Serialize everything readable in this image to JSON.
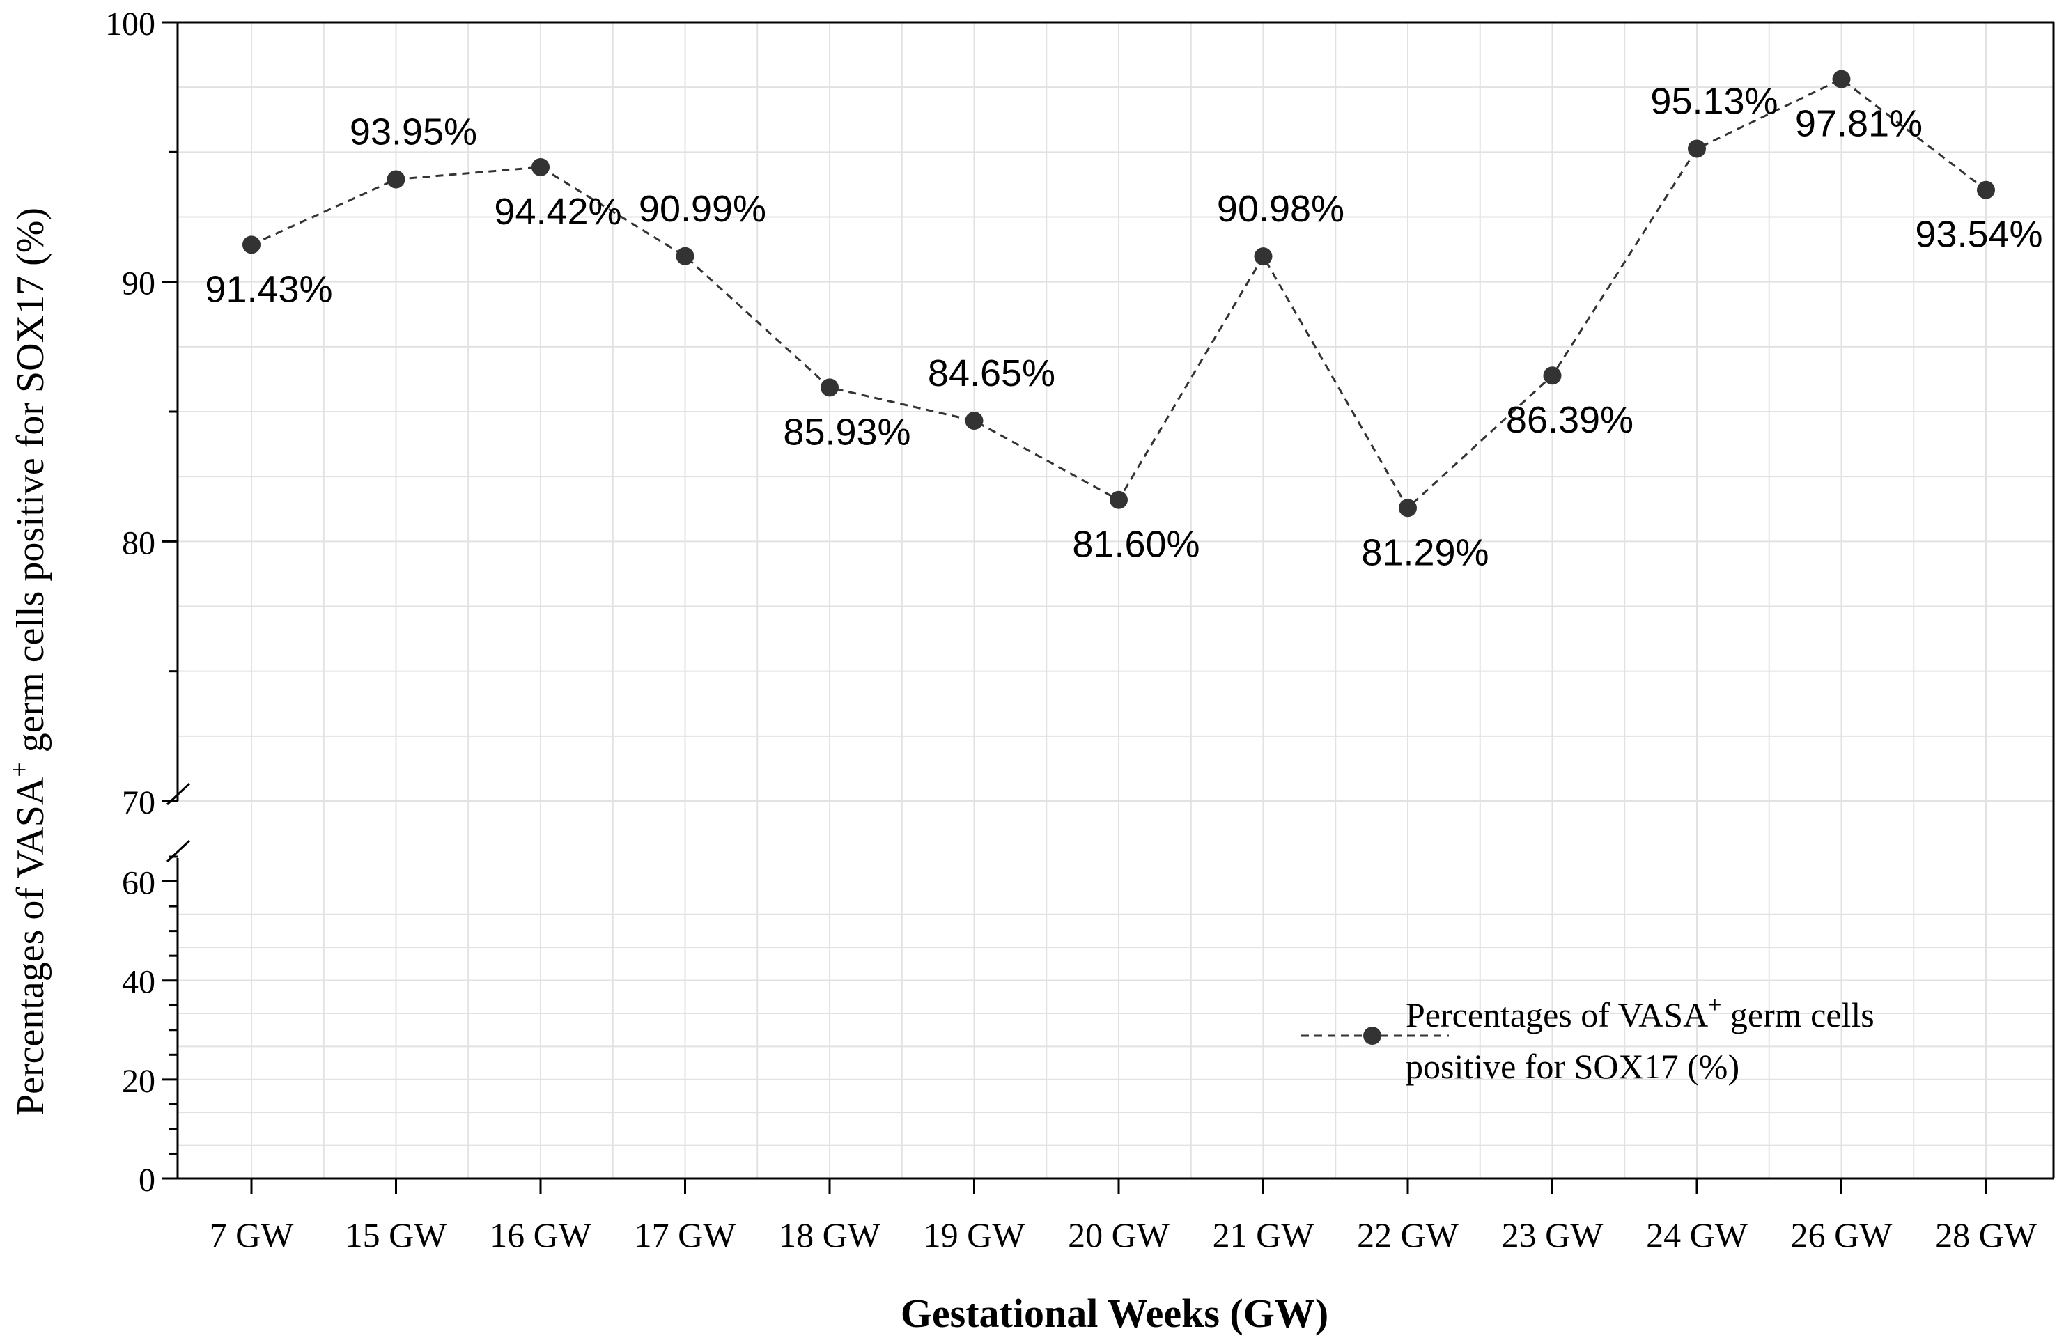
{
  "chart_data": {
    "type": "line",
    "title": "",
    "xlabel": "Gestational Weeks (GW)",
    "ylabel": {
      "prefix": "Percentages of VASA",
      "superscript": "+",
      "suffix": " germ cells positive for SOX17 (%)"
    },
    "categories": [
      "7 GW",
      "15 GW",
      "16 GW",
      "17 GW",
      "18 GW",
      "19 GW",
      "20 GW",
      "21 GW",
      "22 GW",
      "23 GW",
      "24 GW",
      "26 GW",
      "28 GW"
    ],
    "series": [
      {
        "name": "Percentages of VASA+ germ cells positive for SOX17 (%)",
        "values": [
          91.43,
          93.95,
          94.42,
          90.99,
          85.93,
          84.65,
          81.6,
          90.98,
          81.29,
          86.39,
          95.13,
          97.81,
          93.54
        ],
        "data_labels": [
          "91.43%",
          "93.95%",
          "94.42%",
          "90.99%",
          "85.93%",
          "84.65%",
          "81.60%",
          "90.98%",
          "81.29%",
          "86.39%",
          "95.13%",
          "97.81%",
          "93.54%"
        ],
        "label_positions": [
          "below",
          "above",
          "below",
          "above",
          "below",
          "above",
          "below",
          "above",
          "below",
          "below",
          "above",
          "below",
          "below"
        ],
        "color": "#333333",
        "line_style": "dashed",
        "marker": "circle"
      }
    ],
    "y_axis": {
      "broken": true,
      "lower_segment": {
        "range": [
          0,
          65
        ],
        "ticks": [
          "0",
          "20",
          "40",
          "60"
        ]
      },
      "upper_segment": {
        "range": [
          70,
          100
        ],
        "ticks": [
          "70",
          "80",
          "90",
          "100"
        ]
      }
    },
    "grid": true,
    "legend": {
      "position": "bottom-right",
      "line1_prefix": "Percentages of VASA",
      "line1_superscript": "+",
      "line1_suffix": " germ cells",
      "line2": "positive for SOX17 (%)"
    }
  },
  "colors": {
    "grid": "#e2e2e2",
    "axis": "#000000",
    "series": "#333333"
  }
}
